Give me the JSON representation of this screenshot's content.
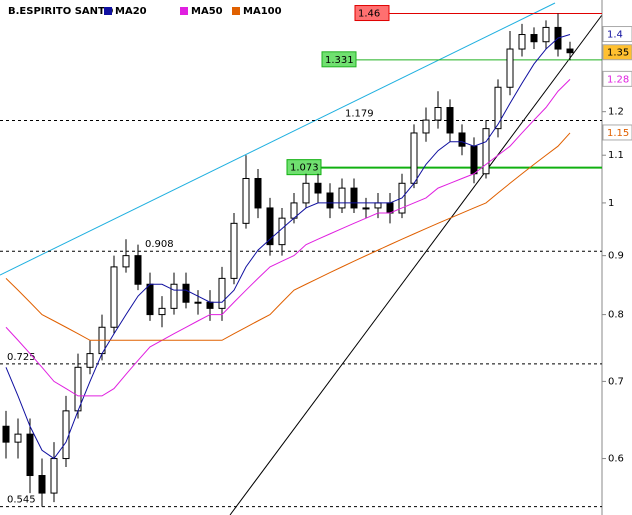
{
  "chart_data": {
    "type": "candlestick",
    "title": "B.ESPIRITO SANTO",
    "log_scale": true,
    "ylim": [
      0.536,
      1.5
    ],
    "yticks": [
      0.6,
      0.7,
      0.8,
      0.9,
      1,
      1.1,
      1.2
    ],
    "candle_colors": {
      "up": "#ffffff",
      "down": "#000000",
      "outline": "#000000"
    },
    "open": [
      0.64,
      0.62,
      0.63,
      0.58,
      0.56,
      0.6,
      0.66,
      0.72,
      0.74,
      0.78,
      0.88,
      0.9,
      0.85,
      0.8,
      0.81,
      0.85,
      0.82,
      0.82,
      0.81,
      0.86,
      0.96,
      1.05,
      0.99,
      0.92,
      0.97,
      1.0,
      1.04,
      1.02,
      0.99,
      1.03,
      0.99,
      0.99,
      1.0,
      0.98,
      1.04,
      1.15,
      1.18,
      1.21,
      1.15,
      1.12,
      1.06,
      1.16,
      1.26,
      1.36,
      1.4,
      1.38,
      1.42,
      1.36
    ],
    "high": [
      0.66,
      0.65,
      0.65,
      0.6,
      0.62,
      0.68,
      0.74,
      0.76,
      0.8,
      0.9,
      0.93,
      0.92,
      0.87,
      0.83,
      0.87,
      0.87,
      0.84,
      0.84,
      0.88,
      0.98,
      1.1,
      1.07,
      1.01,
      0.99,
      1.02,
      1.06,
      1.06,
      1.04,
      1.05,
      1.05,
      1.01,
      1.02,
      1.02,
      1.06,
      1.17,
      1.21,
      1.25,
      1.23,
      1.17,
      1.14,
      1.18,
      1.28,
      1.41,
      1.43,
      1.42,
      1.44,
      1.46,
      1.38
    ],
    "low": [
      0.6,
      0.6,
      0.56,
      0.545,
      0.55,
      0.59,
      0.65,
      0.71,
      0.73,
      0.77,
      0.87,
      0.84,
      0.79,
      0.78,
      0.8,
      0.81,
      0.8,
      0.79,
      0.79,
      0.85,
      0.95,
      0.97,
      0.9,
      0.9,
      0.96,
      0.99,
      1.0,
      0.97,
      0.98,
      0.98,
      0.97,
      0.97,
      0.96,
      0.97,
      1.03,
      1.13,
      1.16,
      1.13,
      1.1,
      1.04,
      1.05,
      1.14,
      1.24,
      1.34,
      1.36,
      1.36,
      1.34,
      1.33
    ],
    "close": [
      0.62,
      0.63,
      0.58,
      0.56,
      0.6,
      0.66,
      0.72,
      0.74,
      0.78,
      0.88,
      0.9,
      0.85,
      0.8,
      0.81,
      0.85,
      0.82,
      0.82,
      0.81,
      0.86,
      0.96,
      1.05,
      0.99,
      0.92,
      0.97,
      1.0,
      1.04,
      1.02,
      0.99,
      1.03,
      0.99,
      0.99,
      1.0,
      0.98,
      1.04,
      1.15,
      1.18,
      1.21,
      1.15,
      1.12,
      1.06,
      1.16,
      1.26,
      1.36,
      1.4,
      1.38,
      1.42,
      1.36,
      1.35
    ],
    "series": [
      {
        "name": "MA20",
        "color": "#1010a0",
        "values": [
          0.72,
          0.68,
          0.64,
          0.61,
          0.6,
          0.62,
          0.66,
          0.7,
          0.74,
          0.77,
          0.8,
          0.83,
          0.85,
          0.85,
          0.84,
          0.84,
          0.83,
          0.82,
          0.82,
          0.84,
          0.88,
          0.91,
          0.93,
          0.95,
          0.97,
          0.99,
          1.0,
          1.0,
          1.0,
          1.0,
          1.0,
          1.0,
          1.0,
          1.01,
          1.04,
          1.08,
          1.11,
          1.13,
          1.13,
          1.12,
          1.13,
          1.17,
          1.22,
          1.27,
          1.32,
          1.36,
          1.39,
          1.4
        ]
      },
      {
        "name": "MA50",
        "color": "#e020e0",
        "values": [
          0.78,
          0.76,
          0.74,
          0.72,
          0.7,
          0.69,
          0.68,
          0.68,
          0.68,
          0.69,
          0.71,
          0.73,
          0.75,
          0.76,
          0.77,
          0.78,
          0.79,
          0.8,
          0.8,
          0.82,
          0.84,
          0.86,
          0.88,
          0.89,
          0.9,
          0.92,
          0.93,
          0.94,
          0.95,
          0.96,
          0.97,
          0.98,
          0.98,
          0.99,
          1.0,
          1.01,
          1.03,
          1.04,
          1.05,
          1.06,
          1.08,
          1.1,
          1.12,
          1.15,
          1.18,
          1.21,
          1.25,
          1.28
        ]
      },
      {
        "name": "MA100",
        "color": "#e06000",
        "values": [
          0.86,
          0.84,
          0.82,
          0.8,
          0.79,
          0.78,
          0.77,
          0.76,
          0.76,
          0.76,
          0.76,
          0.76,
          0.76,
          0.76,
          0.76,
          0.76,
          0.76,
          0.76,
          0.76,
          0.77,
          0.78,
          0.79,
          0.8,
          0.82,
          0.84,
          0.85,
          0.86,
          0.87,
          0.88,
          0.89,
          0.9,
          0.91,
          0.92,
          0.93,
          0.94,
          0.95,
          0.96,
          0.97,
          0.98,
          0.99,
          1.0,
          1.02,
          1.04,
          1.06,
          1.08,
          1.1,
          1.12,
          1.15
        ]
      }
    ],
    "levels": [
      {
        "value": 1.46,
        "color": "#e00000",
        "style": "solid",
        "tag_color": "#ff7070"
      },
      {
        "value": 1.331,
        "color": "#20b020",
        "style": "solid",
        "tag_color": "#70e070"
      },
      {
        "value": 1.179,
        "color": "#000000",
        "style": "dashed"
      },
      {
        "value": 1.073,
        "color": "#10b010",
        "style": "bold",
        "tag_color": "#70e070"
      },
      {
        "value": 0.908,
        "color": "#000000",
        "style": "dashed"
      },
      {
        "value": 0.725,
        "color": "#000000",
        "style": "dashed"
      },
      {
        "value": 0.545,
        "color": "#000000",
        "style": "dashed"
      }
    ],
    "price_tags": [
      {
        "value": 1.4,
        "color": "#1010a0",
        "background": "#ffffff"
      },
      {
        "value": 1.35,
        "color": "#000000",
        "background": "#ffc030"
      },
      {
        "value": 1.28,
        "color": "#e020e0",
        "background": "#ffffff"
      },
      {
        "value": 1.15,
        "color": "#e06000",
        "background": "#ffffff"
      }
    ]
  }
}
